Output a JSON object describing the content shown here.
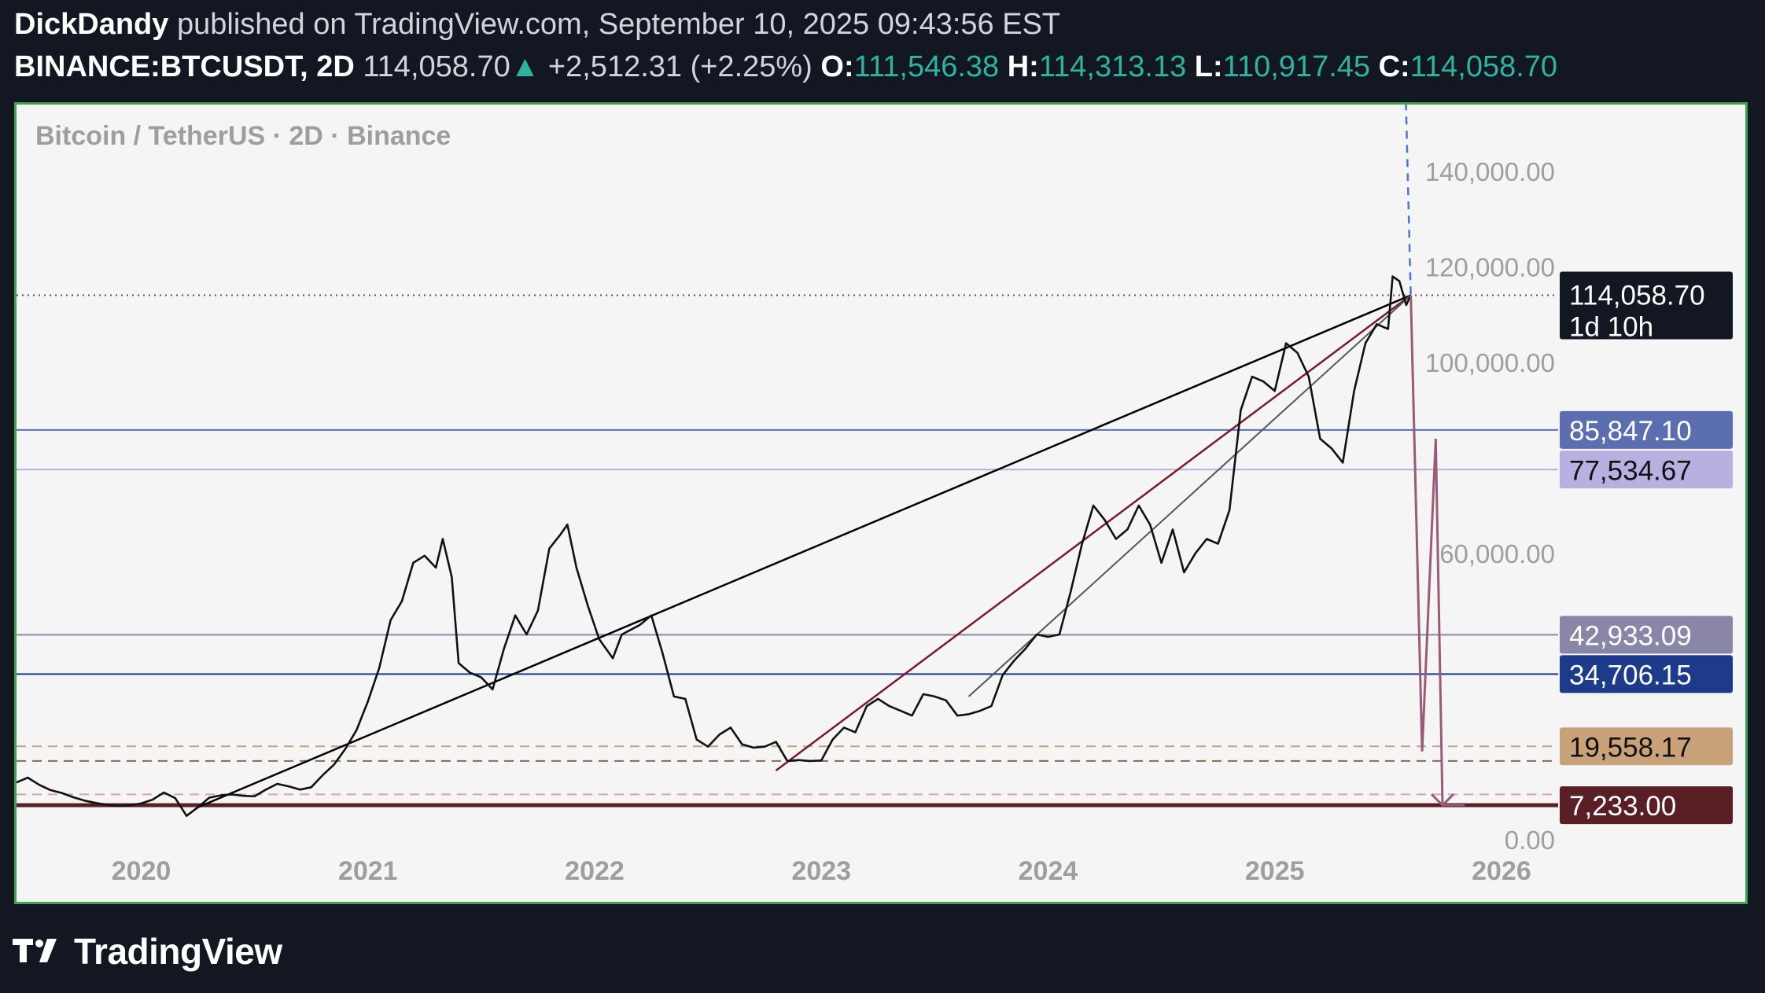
{
  "header": {
    "author": "DickDandy",
    "published_text": "published on TradingView.com, September 10, 2025 09:43:56 EST",
    "symbol": "BINANCE:BTCUSDT, 2D",
    "price": "114,058.70",
    "change": "+2,512.31 (+2.25%)",
    "open_label": "O:",
    "open": "111,546.38",
    "high_label": "H:",
    "high": "114,313.13",
    "low_label": "L:",
    "low": "110,917.45",
    "close_label": "C:",
    "close": "114,058.70"
  },
  "footer": {
    "brand": "TradingView"
  },
  "colors": {
    "up": "#2db3a0",
    "frame": "#3fa34d",
    "background": "#f5f5f5",
    "candles": "#111111",
    "trendline_main": "#000000",
    "trendline_red": "#7a1a2a",
    "trendline_gray": "#555555",
    "projection_arrow": "#9a5a7a",
    "projection_dashed": "#4a74d6"
  },
  "chart_data": {
    "type": "line",
    "title": "Bitcoin / TetherUS · 2D · Binance",
    "x_ticks": [
      "2020",
      "2021",
      "2022",
      "2023",
      "2024",
      "2025",
      "2026"
    ],
    "x_tick_values": [
      2020.0,
      2021.0,
      2022.0,
      2023.0,
      2024.0,
      2025.0,
      2026.0
    ],
    "y_ticks": [
      "140,000.00",
      "120,000.00",
      "100,000.00",
      "60,000.00",
      "0.00"
    ],
    "y_tick_values": [
      140000,
      120000,
      100000,
      60000,
      0
    ],
    "xlim": [
      2019.45,
      2026.25
    ],
    "ylim": [
      -13000,
      154000
    ],
    "grid": false,
    "current_price": {
      "label": "114,058.70",
      "countdown": "1d 10h",
      "value": 114058.7,
      "color": "#131722"
    },
    "horizontal_levels": [
      {
        "label": "85,847.10",
        "value": 85847.1,
        "color": "#5b6fb0",
        "style": "solid"
      },
      {
        "label": "77,534.67",
        "value": 77534.67,
        "color": "#b8b0e0",
        "style": "solid"
      },
      {
        "label": "42,933.09",
        "value": 42933.09,
        "color": "#8a86a8",
        "style": "solid"
      },
      {
        "label": "34,706.15",
        "value": 34706.15,
        "color": "#1e3a8a",
        "style": "solid"
      },
      {
        "label": "19,558.17",
        "value": 19558.17,
        "color": "#c9a27a",
        "style": "dashed"
      },
      {
        "label": "7,233.00",
        "value": 7233.0,
        "color": "#5a1f24",
        "style": "solid"
      }
    ],
    "extra_dashed_levels": [
      {
        "value": 16500,
        "color": "#8a6a4a"
      },
      {
        "value": 9500,
        "color": "#e0a0a8"
      }
    ],
    "trendlines": [
      {
        "name": "main",
        "points": [
          [
            2020.25,
            6800
          ],
          [
            2025.6,
            114058
          ]
        ],
        "color": "#000000",
        "width": 2.5
      },
      {
        "name": "red",
        "points": [
          [
            2022.8,
            14500
          ],
          [
            2025.6,
            114058
          ]
        ],
        "color": "#7a1a2a",
        "width": 2.5
      },
      {
        "name": "gray",
        "points": [
          [
            2023.65,
            30000
          ],
          [
            2025.6,
            114058
          ]
        ],
        "color": "#555555",
        "width": 2.0
      }
    ],
    "projection": {
      "path": [
        [
          2025.6,
          114058
        ],
        [
          2025.65,
          18500
        ],
        [
          2025.71,
          84000
        ],
        [
          2025.74,
          7233
        ]
      ],
      "color": "#9a5a7a",
      "dashed_path": [
        [
          2025.56,
          190000
        ],
        [
          2025.65,
          18500
        ]
      ],
      "dashed_color": "#4a74d6"
    },
    "series": [
      {
        "values": [
          [
            2019.45,
            12000
          ],
          [
            2019.5,
            13000
          ],
          [
            2019.55,
            11500
          ],
          [
            2019.6,
            10400
          ],
          [
            2019.65,
            9800
          ],
          [
            2019.7,
            8900
          ],
          [
            2019.75,
            8200
          ],
          [
            2019.8,
            7700
          ],
          [
            2019.85,
            7300
          ],
          [
            2019.9,
            7100
          ],
          [
            2019.95,
            7200
          ],
          [
            2020.0,
            7600
          ],
          [
            2020.05,
            8400
          ],
          [
            2020.1,
            9900
          ],
          [
            2020.15,
            8700
          ],
          [
            2020.2,
            5000
          ],
          [
            2020.25,
            6800
          ],
          [
            2020.3,
            8800
          ],
          [
            2020.35,
            9300
          ],
          [
            2020.4,
            9500
          ],
          [
            2020.45,
            9200
          ],
          [
            2020.5,
            9100
          ],
          [
            2020.55,
            10500
          ],
          [
            2020.6,
            11700
          ],
          [
            2020.65,
            11200
          ],
          [
            2020.7,
            10500
          ],
          [
            2020.75,
            11000
          ],
          [
            2020.8,
            13500
          ],
          [
            2020.85,
            15700
          ],
          [
            2020.9,
            19000
          ],
          [
            2020.95,
            23000
          ],
          [
            2021.0,
            29000
          ],
          [
            2021.05,
            36000
          ],
          [
            2021.1,
            46000
          ],
          [
            2021.15,
            50000
          ],
          [
            2021.2,
            58000
          ],
          [
            2021.25,
            59500
          ],
          [
            2021.3,
            57000
          ],
          [
            2021.33,
            63000
          ],
          [
            2021.37,
            55000
          ],
          [
            2021.4,
            37000
          ],
          [
            2021.45,
            35000
          ],
          [
            2021.5,
            34000
          ],
          [
            2021.55,
            31500
          ],
          [
            2021.6,
            40000
          ],
          [
            2021.65,
            47000
          ],
          [
            2021.7,
            43000
          ],
          [
            2021.75,
            48000
          ],
          [
            2021.8,
            61000
          ],
          [
            2021.85,
            64000
          ],
          [
            2021.88,
            66000
          ],
          [
            2021.92,
            57000
          ],
          [
            2021.97,
            49000
          ],
          [
            2022.02,
            42000
          ],
          [
            2022.08,
            38000
          ],
          [
            2022.12,
            43000
          ],
          [
            2022.2,
            45000
          ],
          [
            2022.25,
            47000
          ],
          [
            2022.3,
            39000
          ],
          [
            2022.35,
            30000
          ],
          [
            2022.4,
            29500
          ],
          [
            2022.45,
            21000
          ],
          [
            2022.5,
            19500
          ],
          [
            2022.55,
            22000
          ],
          [
            2022.6,
            23500
          ],
          [
            2022.65,
            20000
          ],
          [
            2022.7,
            19300
          ],
          [
            2022.75,
            19500
          ],
          [
            2022.8,
            20500
          ],
          [
            2022.85,
            16500
          ],
          [
            2022.9,
            16700
          ],
          [
            2022.95,
            16500
          ],
          [
            2023.0,
            16600
          ],
          [
            2023.05,
            21000
          ],
          [
            2023.1,
            23500
          ],
          [
            2023.15,
            22500
          ],
          [
            2023.2,
            28000
          ],
          [
            2023.25,
            29500
          ],
          [
            2023.3,
            28000
          ],
          [
            2023.35,
            27000
          ],
          [
            2023.4,
            26000
          ],
          [
            2023.45,
            30500
          ],
          [
            2023.5,
            30000
          ],
          [
            2023.55,
            29200
          ],
          [
            2023.6,
            26000
          ],
          [
            2023.65,
            26300
          ],
          [
            2023.7,
            27000
          ],
          [
            2023.75,
            28000
          ],
          [
            2023.8,
            34500
          ],
          [
            2023.85,
            37500
          ],
          [
            2023.9,
            40000
          ],
          [
            2023.95,
            43000
          ],
          [
            2024.0,
            42500
          ],
          [
            2024.05,
            43000
          ],
          [
            2024.1,
            52000
          ],
          [
            2024.15,
            62000
          ],
          [
            2024.2,
            70000
          ],
          [
            2024.25,
            67000
          ],
          [
            2024.3,
            63000
          ],
          [
            2024.35,
            65000
          ],
          [
            2024.4,
            70000
          ],
          [
            2024.45,
            66000
          ],
          [
            2024.5,
            58000
          ],
          [
            2024.55,
            65000
          ],
          [
            2024.6,
            56000
          ],
          [
            2024.65,
            60000
          ],
          [
            2024.7,
            63000
          ],
          [
            2024.75,
            62000
          ],
          [
            2024.8,
            69000
          ],
          [
            2024.85,
            90000
          ],
          [
            2024.9,
            97000
          ],
          [
            2024.95,
            96000
          ],
          [
            2025.0,
            94000
          ],
          [
            2025.05,
            104000
          ],
          [
            2025.1,
            102000
          ],
          [
            2025.15,
            97000
          ],
          [
            2025.2,
            84000
          ],
          [
            2025.25,
            82000
          ],
          [
            2025.3,
            79000
          ],
          [
            2025.35,
            94000
          ],
          [
            2025.4,
            104000
          ],
          [
            2025.45,
            108000
          ],
          [
            2025.5,
            107000
          ],
          [
            2025.52,
            118000
          ],
          [
            2025.55,
            117000
          ],
          [
            2025.58,
            112000
          ],
          [
            2025.6,
            114058
          ]
        ]
      }
    ]
  }
}
